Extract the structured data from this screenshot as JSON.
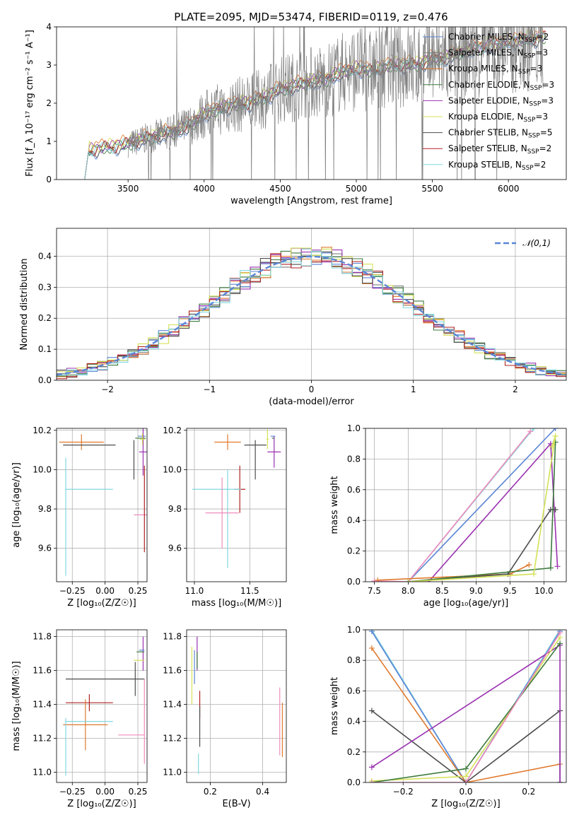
{
  "figure": {
    "title": "PLATE=2095, MJD=53474, FIBERID=0119, z=0.476",
    "colors": {
      "Chabrier MILES": "#5b86d6",
      "Salpeter MILES": "#7f7f7f",
      "Kroupa MILES": "#e07a2e",
      "Chabrier ELODIE": "#3d7a3d",
      "Salpeter ELODIE": "#9a31b0",
      "Kroupa ELODIE": "#d4e157",
      "Chabrier STELIB": "#4d4d4d",
      "Salpeter STELIB": "#b22222",
      "Kroupa STELIB": "#80d8e0",
      "Pink model": "#f08cbc",
      "Data": "#808080"
    },
    "legend": [
      {
        "name": "Chabrier MILES",
        "n": "2"
      },
      {
        "name": "Salpeter MILES",
        "n": "3"
      },
      {
        "name": "Kroupa MILES",
        "n": "3"
      },
      {
        "name": "Chabrier ELODIE",
        "n": "3"
      },
      {
        "name": "Salpeter ELODIE",
        "n": "3"
      },
      {
        "name": "Kroupa ELODIE",
        "n": "3"
      },
      {
        "name": "Chabrier STELIB",
        "n": "5"
      },
      {
        "name": "Salpeter STELIB",
        "n": "2"
      },
      {
        "name": "Kroupa STELIB",
        "n": "2"
      }
    ],
    "legend_fmt": {
      "nssp": "N",
      "nssp_sub": "SSP",
      "eq": "="
    }
  },
  "chart_data": [
    {
      "id": "spectrum",
      "type": "line",
      "xlabel": "wavelength [Angstrom, rest frame]",
      "ylabel": "Flux [f_λ 10⁻¹⁷ erg cm⁻² s⁻¹ A⁻¹]",
      "xlim": [
        3030,
        6380
      ],
      "ylim": [
        0,
        4
      ],
      "xticks": [
        "3500",
        "4000",
        "4500",
        "5000",
        "5500",
        "6000"
      ],
      "yticks": [
        "0",
        "1",
        "2",
        "3",
        "4"
      ],
      "grid": false,
      "legend_position": "top-right",
      "continuum": {
        "x": [
          3215,
          3240,
          3300,
          3400,
          3500,
          3600,
          3700,
          3800,
          3900,
          4000,
          4100,
          4200,
          4300,
          4400,
          4500,
          4600,
          4700,
          4800,
          4900,
          5000,
          5100,
          5200,
          5300,
          5400,
          5500,
          5600,
          5700,
          5800,
          5900,
          6000,
          6100,
          6200
        ],
        "y": [
          0.0,
          0.75,
          0.8,
          0.85,
          0.92,
          1.05,
          1.15,
          1.25,
          1.4,
          1.7,
          1.85,
          1.95,
          2.0,
          2.15,
          2.35,
          2.45,
          2.55,
          2.6,
          2.8,
          2.9,
          2.85,
          2.95,
          3.0,
          3.0,
          3.15,
          3.2,
          3.35,
          3.45,
          3.5,
          3.6,
          3.65,
          3.7
        ]
      },
      "data_start_x": 3500,
      "series_offsets": [
        -0.08,
        0.0,
        0.1,
        -0.02,
        0.04,
        0.08,
        -0.04,
        0.02,
        0.0
      ]
    },
    {
      "id": "residuals",
      "type": "line",
      "subtype": "step-histogram",
      "xlabel": "(data-model)/error",
      "ylabel": "Normed distribution",
      "xlim": [
        -2.5,
        2.5
      ],
      "ylim": [
        0,
        0.49
      ],
      "xticks": [
        "−2",
        "−1",
        "0",
        "1",
        "2"
      ],
      "yticks": [
        "0.0",
        "0.1",
        "0.2",
        "0.3",
        "0.4"
      ],
      "grid": true,
      "reference": {
        "name": "𝒩(0,1)",
        "mean": 0,
        "sigma": 1
      },
      "bin_width": 0.1,
      "legend_position": "top-right"
    },
    {
      "id": "age-vs-Z",
      "type": "scatter",
      "xlabel": "Z [log₁₀(Z/Z☉)]",
      "ylabel": "age  [log₁₀(age/yr)]",
      "xlim": [
        -0.37,
        0.32
      ],
      "ylim": [
        9.43,
        10.21
      ],
      "xticks": [
        "−0.25",
        "0.00",
        "0.25"
      ],
      "yticks": [
        "9.6",
        "9.8",
        "10.0",
        "10.2"
      ],
      "grid": true,
      "points": [
        {
          "series": "Kroupa MILES",
          "x": -0.18,
          "y": 10.14,
          "xerr": 0.17,
          "yerr": 0.04
        },
        {
          "series": "Chabrier STELIB",
          "x": -0.12,
          "y": 10.125,
          "xerr": 0.2,
          "yerr": 0.0
        },
        {
          "series": "Chabrier STELIB",
          "x": 0.22,
          "y": 10.05,
          "xerr": 0.0,
          "yerr": 0.1
        },
        {
          "series": "Chabrier MILES",
          "x": 0.28,
          "y": 10.17,
          "xerr": 0.03,
          "yerr": 0.0
        },
        {
          "series": "Chabrier ELODIE",
          "x": 0.27,
          "y": 10.16,
          "xerr": 0.04,
          "yerr": 0.0
        },
        {
          "series": "Salpeter ELODIE",
          "x": 0.29,
          "y": 10.09,
          "xerr": 0.03,
          "yerr": 0.12
        },
        {
          "series": "Kroupa ELODIE",
          "x": 0.285,
          "y": 10.155,
          "xerr": 0.02,
          "yerr": 0.03
        },
        {
          "series": "Kroupa STELIB",
          "x": -0.12,
          "y": 9.9,
          "xerr": 0.18,
          "yerr": 0.0
        },
        {
          "series": "Kroupa STELIB",
          "x": -0.3,
          "y": 9.76,
          "xerr": 0.0,
          "yerr": 0.3
        },
        {
          "series": "Pink model",
          "x": 0.27,
          "y": 9.77,
          "xerr": 0.05,
          "yerr": 0.0
        },
        {
          "series": "Salpeter STELIB",
          "x": 0.3,
          "y": 9.8,
          "xerr": 0.0,
          "yerr": 0.22
        }
      ]
    },
    {
      "id": "age-vs-mass",
      "type": "scatter",
      "xlabel": "mass [log₁₀(M/M☉)]",
      "ylabel": "",
      "xlim": [
        10.93,
        11.83
      ],
      "ylim": [
        9.43,
        10.21
      ],
      "xticks": [
        "11.0",
        "11.5"
      ],
      "yticks": [
        "9.6",
        "9.8",
        "10.0",
        "10.2"
      ],
      "grid": true,
      "points": [
        {
          "series": "Kroupa MILES",
          "x": 11.3,
          "y": 10.14,
          "xerr": 0.12,
          "yerr": 0.04
        },
        {
          "series": "Chabrier STELIB",
          "x": 11.55,
          "y": 10.125,
          "xerr": 0.1,
          "yerr": 0.0
        },
        {
          "series": "Chabrier STELIB",
          "x": 11.55,
          "y": 10.05,
          "xerr": 0.0,
          "yerr": 0.1
        },
        {
          "series": "Salpeter STELIB",
          "x": 11.41,
          "y": 9.9,
          "xerr": 0.05,
          "yerr": 0.12
        },
        {
          "series": "Kroupa STELIB",
          "x": 11.2,
          "y": 9.9,
          "xerr": 0.22,
          "yerr": 0.0
        },
        {
          "series": "Kroupa STELIB",
          "x": 11.3,
          "y": 9.75,
          "xerr": 0.0,
          "yerr": 0.25
        },
        {
          "series": "Pink model",
          "x": 11.25,
          "y": 9.78,
          "xerr": 0.15,
          "yerr": 0.18
        },
        {
          "series": "Salpeter ELODIE",
          "x": 11.72,
          "y": 10.09,
          "xerr": 0.06,
          "yerr": 0.08
        },
        {
          "series": "Chabrier MILES",
          "x": 11.71,
          "y": 10.17,
          "xerr": 0.02,
          "yerr": 0.0
        },
        {
          "series": "Chabrier ELODIE",
          "x": 11.71,
          "y": 10.16,
          "xerr": 0.01,
          "yerr": 0.0
        },
        {
          "series": "Kroupa ELODIE",
          "x": 11.66,
          "y": 10.155,
          "xerr": 0.01,
          "yerr": 0.05
        }
      ]
    },
    {
      "id": "massweight-vs-age",
      "type": "line",
      "xlabel": "age  [log₁₀(age/yr)]",
      "ylabel": "mass weight",
      "xlim": [
        7.37,
        10.33
      ],
      "ylim": [
        0,
        1
      ],
      "xticks": [
        "7.5",
        "8.0",
        "8.5",
        "9.0",
        "9.5",
        "10.0"
      ],
      "yticks": [
        "0.0",
        "0.2",
        "0.4",
        "0.6",
        "0.8",
        "1.0"
      ],
      "grid": true,
      "series": [
        {
          "name": "Chabrier MILES",
          "x": [
            8.0,
            10.17
          ],
          "y": [
            0.0,
            1.0
          ]
        },
        {
          "name": "Kroupa STELIB",
          "x": [
            8.0,
            9.85
          ],
          "y": [
            0.0,
            1.0
          ]
        },
        {
          "name": "Pink model",
          "x": [
            7.5,
            8.0,
            9.8
          ],
          "y": [
            0.005,
            0.0,
            0.98
          ]
        },
        {
          "name": "Salpeter ELODIE",
          "x": [
            8.3,
            10.1,
            10.2
          ],
          "y": [
            0.0,
            0.9,
            0.1
          ]
        },
        {
          "name": "Kroupa MILES",
          "x": [
            7.55,
            9.5,
            9.78
          ],
          "y": [
            0.01,
            0.05,
            0.11
          ]
        },
        {
          "name": "Chabrier STELIB",
          "x": [
            8.0,
            9.47,
            10.1,
            10.17
          ],
          "y": [
            0.0,
            0.05,
            0.47,
            0.47
          ]
        },
        {
          "name": "Chabrier ELODIE",
          "x": [
            8.0,
            10.1,
            10.17
          ],
          "y": [
            0.0,
            0.09,
            0.91
          ]
        },
        {
          "name": "Kroupa ELODIE",
          "x": [
            8.0,
            9.85,
            10.17,
            10.12
          ],
          "y": [
            0.0,
            0.05,
            0.95,
            0.88
          ]
        }
      ]
    },
    {
      "id": "mass-vs-Z",
      "type": "scatter",
      "xlabel": "Z [log₁₀(Z/Z☉)]",
      "ylabel": "mass [log₁₀(M/M☉)]",
      "xlim": [
        -0.37,
        0.32
      ],
      "ylim": [
        10.94,
        11.84
      ],
      "xticks": [
        "−0.25",
        "0.00",
        "0.25"
      ],
      "yticks": [
        "11.0",
        "11.2",
        "11.4",
        "11.6",
        "11.8"
      ],
      "grid": true,
      "points": [
        {
          "series": "Chabrier STELIB",
          "x": 0.0,
          "y": 11.55,
          "xerr": 0.3,
          "yerr": 0.0
        },
        {
          "series": "Chabrier STELIB",
          "x": 0.23,
          "y": 11.55,
          "xerr": 0.0,
          "yerr": 0.1
        },
        {
          "series": "Salpeter STELIB",
          "x": -0.12,
          "y": 11.41,
          "xerr": 0.18,
          "yerr": 0.05
        },
        {
          "series": "Kroupa MILES",
          "x": -0.15,
          "y": 11.28,
          "xerr": 0.17,
          "yerr": 0.15
        },
        {
          "series": "Kroupa STELIB",
          "x": -0.12,
          "y": 11.3,
          "xerr": 0.18,
          "yerr": 0.0
        },
        {
          "series": "Kroupa STELIB",
          "x": -0.3,
          "y": 11.15,
          "xerr": 0.0,
          "yerr": 0.17
        },
        {
          "series": "Pink model",
          "x": 0.2,
          "y": 11.22,
          "xerr": 0.1,
          "yerr": 0.0
        },
        {
          "series": "Salpeter ELODIE",
          "x": 0.29,
          "y": 11.7,
          "xerr": 0.0,
          "yerr": 0.1
        },
        {
          "series": "Chabrier ELODIE",
          "x": 0.27,
          "y": 11.71,
          "xerr": 0.03,
          "yerr": 0.0
        },
        {
          "series": "Chabrier MILES",
          "x": 0.28,
          "y": 11.72,
          "xerr": 0.02,
          "yerr": 0.0
        },
        {
          "series": "Kroupa ELODIE",
          "x": 0.26,
          "y": 11.66,
          "xerr": 0.04,
          "yerr": 0.0
        },
        {
          "series": "Pink model",
          "x": 0.3,
          "y": 11.3,
          "xerr": 0.0,
          "yerr": 0.25
        }
      ]
    },
    {
      "id": "mass-vs-EBV",
      "type": "scatter",
      "xlabel": "E(B-V)",
      "ylabel": "",
      "xlim": [
        0.11,
        0.49
      ],
      "ylim": [
        10.94,
        11.84
      ],
      "xticks": [
        "0.2",
        "0.4"
      ],
      "yticks": [
        "11.0",
        "11.2",
        "11.4",
        "11.6",
        "11.8"
      ],
      "grid": true,
      "points": [
        {
          "series": "Kroupa ELODIE",
          "x": 0.13,
          "y": 11.57,
          "xerr": 0.0,
          "yerr": 0.17
        },
        {
          "series": "Chabrier MILES",
          "x": 0.14,
          "y": 11.62,
          "xerr": 0.0,
          "yerr": 0.1
        },
        {
          "series": "Salpeter ELODIE",
          "x": 0.15,
          "y": 11.7,
          "xerr": 0.0,
          "yerr": 0.1
        },
        {
          "series": "Chabrier ELODIE",
          "x": 0.15,
          "y": 11.66,
          "xerr": 0.0,
          "yerr": 0.05
        },
        {
          "series": "Salpeter STELIB",
          "x": 0.16,
          "y": 11.4,
          "xerr": 0.0,
          "yerr": 0.08
        },
        {
          "series": "Chabrier STELIB",
          "x": 0.16,
          "y": 11.27,
          "xerr": 0.0,
          "yerr": 0.12
        },
        {
          "series": "Kroupa STELIB",
          "x": 0.155,
          "y": 11.05,
          "xerr": 0.0,
          "yerr": 0.06
        },
        {
          "series": "Pink model",
          "x": 0.465,
          "y": 11.3,
          "xerr": 0.0,
          "yerr": 0.2
        },
        {
          "series": "Kroupa MILES",
          "x": 0.475,
          "y": 11.25,
          "xerr": 0.0,
          "yerr": 0.16
        }
      ]
    },
    {
      "id": "massweight-vs-Z",
      "type": "line",
      "xlabel": "Z [log₁₀(Z/Z☉)]",
      "ylabel": "mass weight",
      "xlim": [
        -0.32,
        0.32
      ],
      "ylim": [
        0,
        1
      ],
      "xticks": [
        "−0.2",
        "0.0",
        "0.2"
      ],
      "yticks": [
        "0.0",
        "0.2",
        "0.4",
        "0.6",
        "0.8",
        "1.0"
      ],
      "grid": true,
      "series": [
        {
          "name": "Kroupa STELIB",
          "x": [
            -0.3,
            0.0,
            0.3
          ],
          "y": [
            1.0,
            0.0,
            1.0
          ]
        },
        {
          "name": "Chabrier MILES",
          "x": [
            -0.3,
            0.0,
            0.3
          ],
          "y": [
            0.99,
            0.0,
            0.99
          ]
        },
        {
          "name": "Kroupa MILES",
          "x": [
            -0.3,
            0.0,
            0.3
          ],
          "y": [
            0.88,
            0.0,
            0.12
          ]
        },
        {
          "name": "Chabrier STELIB",
          "x": [
            -0.3,
            0.0,
            0.3,
            0.3
          ],
          "y": [
            0.47,
            0.0,
            0.47,
            0.0
          ]
        },
        {
          "name": "Salpeter ELODIE",
          "x": [
            -0.3,
            0.3,
            0.3
          ],
          "y": [
            0.1,
            0.9,
            0.0
          ]
        },
        {
          "name": "Kroupa ELODIE",
          "x": [
            -0.3,
            0.0,
            0.3
          ],
          "y": [
            0.01,
            0.04,
            0.95
          ]
        },
        {
          "name": "Chabrier ELODIE",
          "x": [
            -0.3,
            0.0,
            0.3
          ],
          "y": [
            0.0,
            0.09,
            0.91
          ]
        },
        {
          "name": "Pink model",
          "x": [
            -0.3,
            0.0,
            0.3
          ],
          "y": [
            0.0,
            0.0,
            0.98
          ]
        }
      ]
    }
  ]
}
